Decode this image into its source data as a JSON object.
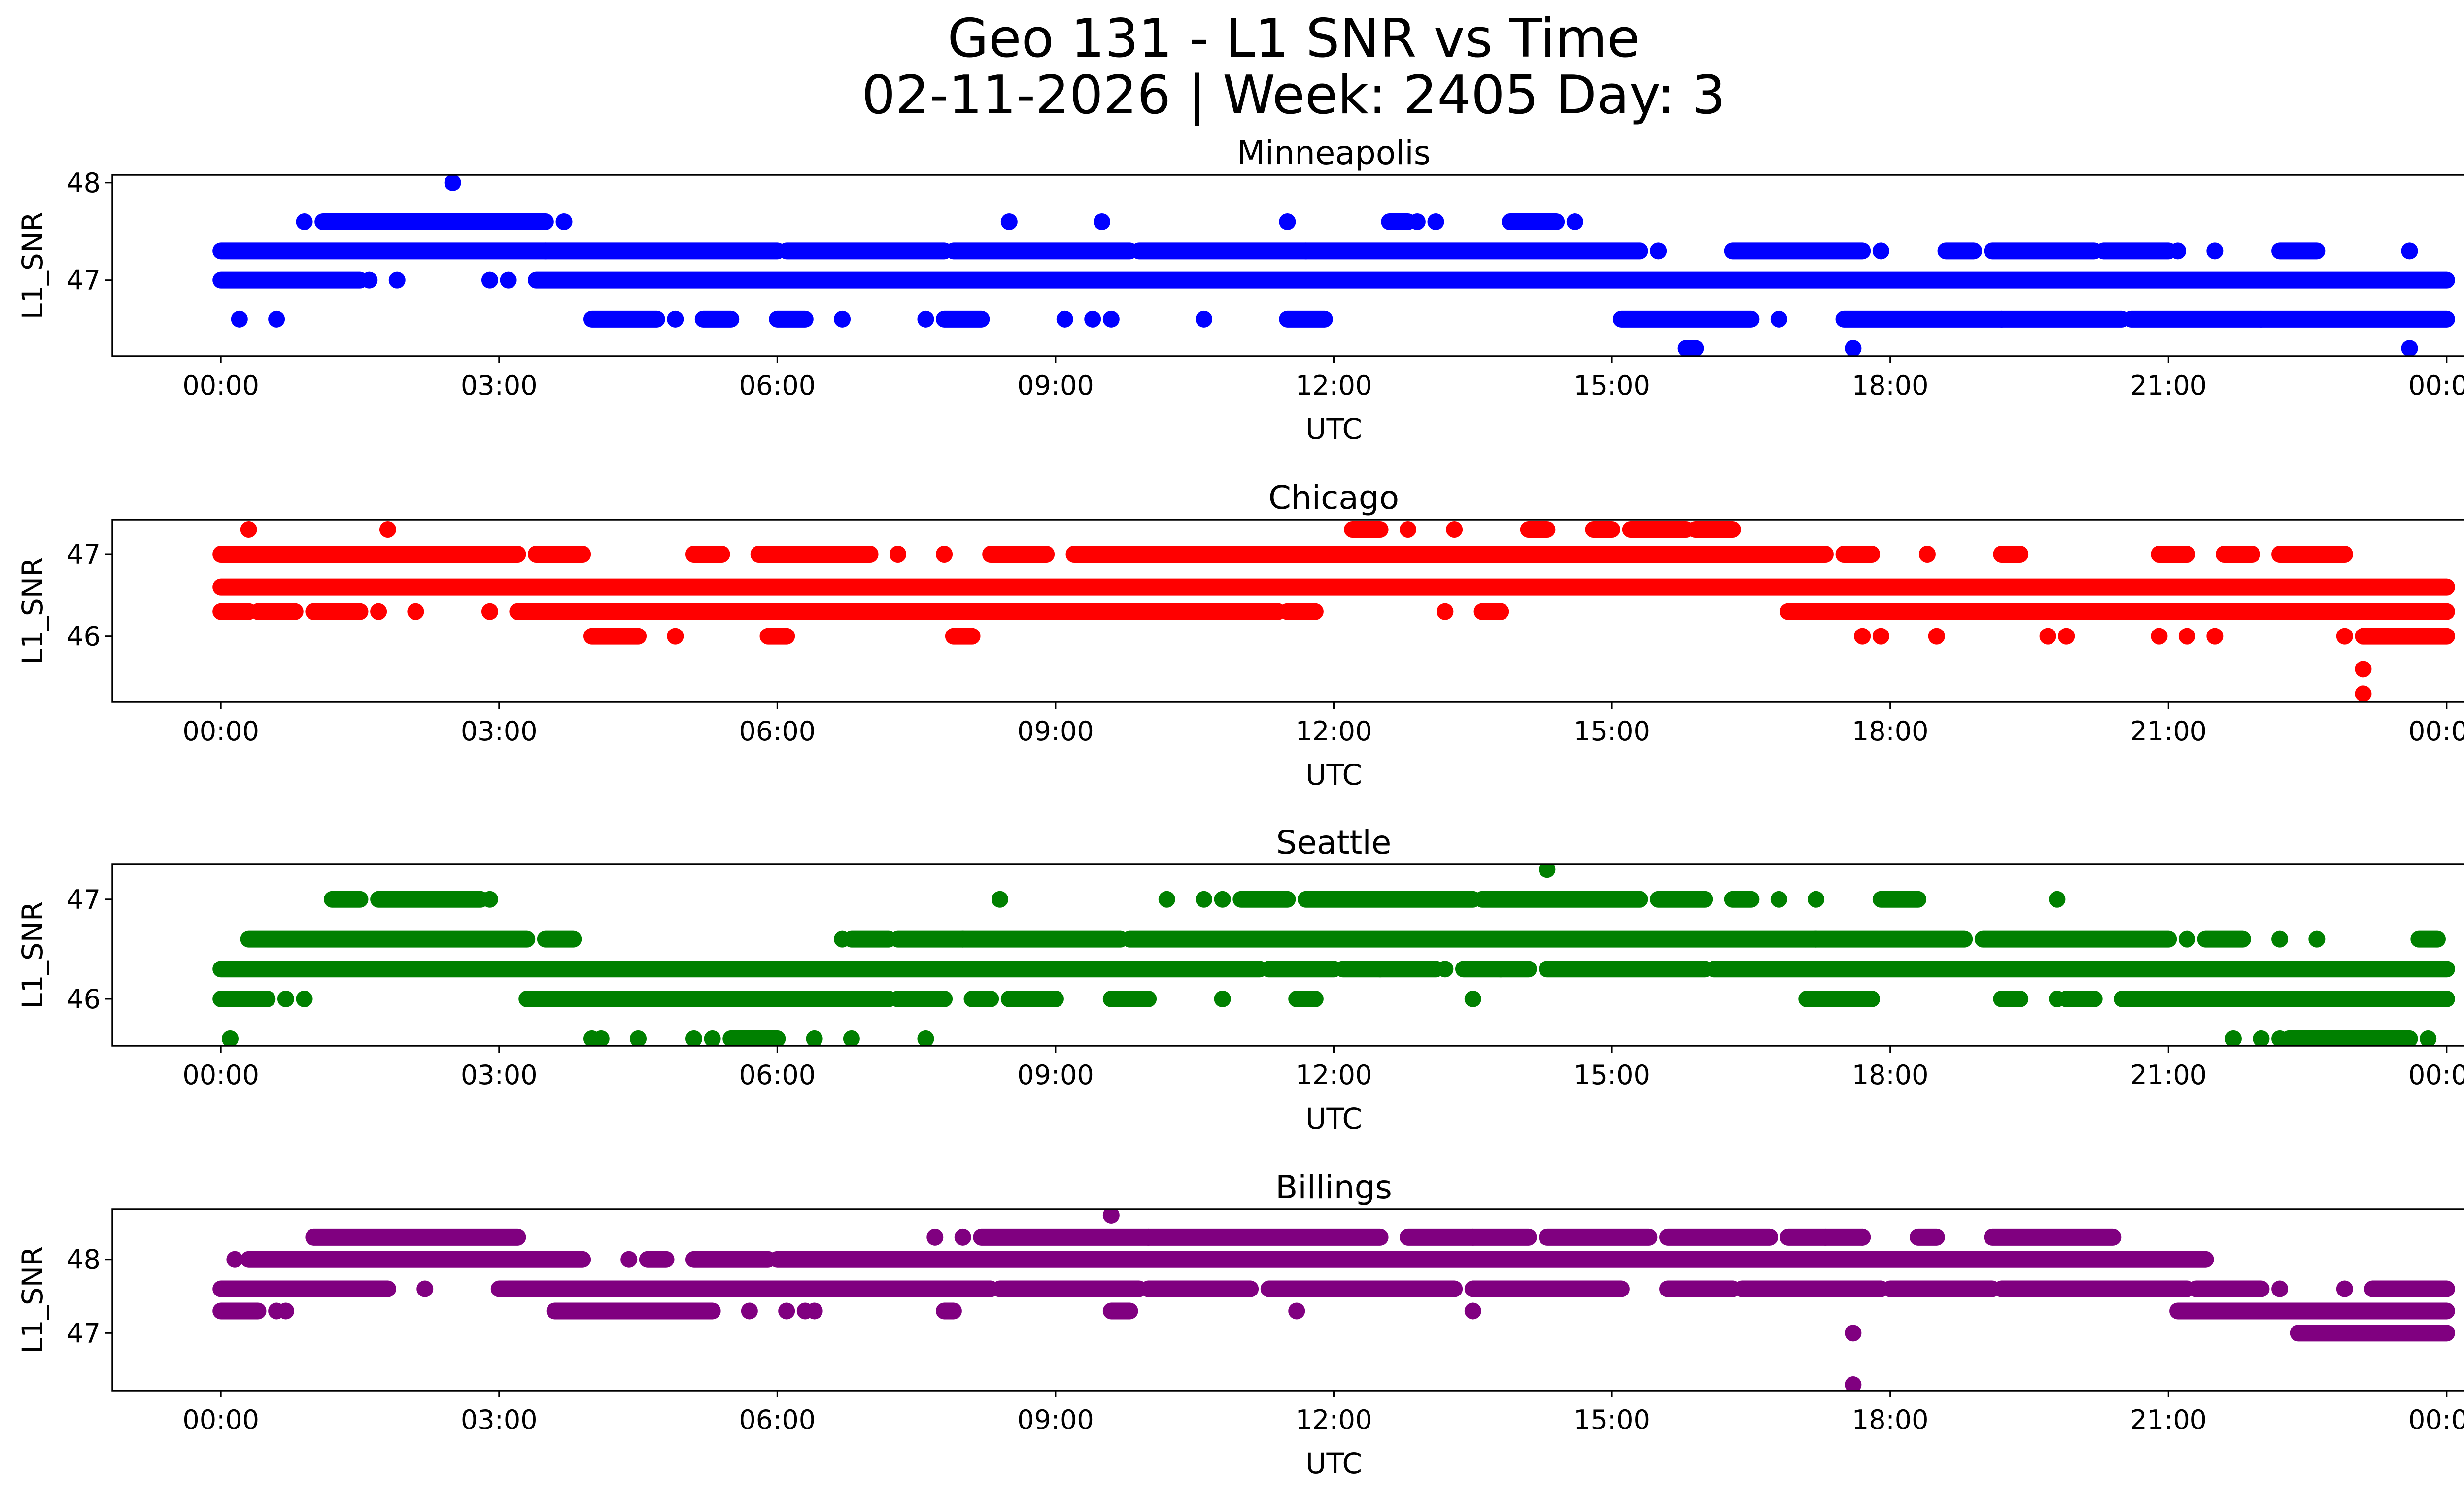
{
  "figure": {
    "title_line1": "Geo 131 - L1 SNR vs Time",
    "title_line2": "02-11-2026 | Week: 2405 Day: 3"
  },
  "chart_data": [
    {
      "type": "scatter",
      "title": "Minneapolis",
      "xlabel": "UTC",
      "ylabel": "L1_SNR",
      "color": "#0000ff",
      "x_range_hours": [
        -1.17,
        25.17
      ],
      "y_range": [
        46.22,
        48.08
      ],
      "x_ticks": [
        {
          "value": 0,
          "label": "00:00"
        },
        {
          "value": 3,
          "label": "03:00"
        },
        {
          "value": 6,
          "label": "06:00"
        },
        {
          "value": 9,
          "label": "09:00"
        },
        {
          "value": 12,
          "label": "12:00"
        },
        {
          "value": 15,
          "label": "15:00"
        },
        {
          "value": 18,
          "label": "18:00"
        },
        {
          "value": 21,
          "label": "21:00"
        },
        {
          "value": 24,
          "label": "00:00"
        }
      ],
      "y_ticks": [
        {
          "value": 47,
          "label": "47"
        },
        {
          "value": 48,
          "label": "48"
        }
      ],
      "series": [
        {
          "y": 47.3,
          "segments": [
            [
              0.0,
              3.5
            ],
            [
              3.5,
              6.0
            ],
            [
              6.1,
              7.8
            ],
            [
              7.9,
              9.8
            ],
            [
              9.9,
              11.7
            ],
            [
              11.7,
              15.3
            ],
            [
              16.3,
              17.7
            ],
            [
              18.6,
              18.9
            ],
            [
              19.1,
              20.2
            ],
            [
              20.3,
              21.0
            ],
            [
              22.2,
              22.6
            ]
          ],
          "points": [
            15.5,
            17.9,
            21.1,
            21.5,
            23.6
          ]
        },
        {
          "y": 47.0,
          "segments": [
            [
              0.0,
              1.5
            ],
            [
              3.4,
              24.0
            ]
          ],
          "points": [
            1.6,
            1.9,
            2.9,
            3.1
          ]
        },
        {
          "y": 47.6,
          "segments": [
            [
              1.1,
              3.5
            ],
            [
              12.6,
              12.8
            ],
            [
              13.9,
              14.4
            ]
          ],
          "points": [
            0.9,
            3.7,
            8.5,
            9.5,
            11.5,
            12.9,
            13.1,
            14.6
          ]
        },
        {
          "y": 46.6,
          "segments": [
            [
              4.0,
              4.7
            ],
            [
              5.2,
              5.5
            ],
            [
              6.0,
              6.3
            ],
            [
              7.8,
              8.2
            ],
            [
              11.5,
              11.9
            ],
            [
              15.1,
              16.5
            ],
            [
              17.5,
              19.2
            ],
            [
              19.2,
              20.5
            ],
            [
              20.6,
              22.0
            ],
            [
              22.0,
              24.0
            ]
          ],
          "points": [
            0.2,
            0.6,
            4.9,
            6.7,
            7.6,
            9.1,
            9.4,
            9.6,
            10.6,
            16.8
          ]
        },
        {
          "y": 46.3,
          "segments": [
            [
              15.8,
              15.9
            ]
          ],
          "points": [
            17.6,
            23.6
          ]
        },
        {
          "y": 48.0,
          "segments": [],
          "points": [
            2.5
          ]
        }
      ]
    },
    {
      "type": "scatter",
      "title": "Chicago",
      "xlabel": "UTC",
      "ylabel": "L1_SNR",
      "color": "#ff0000",
      "x_range_hours": [
        -1.17,
        25.17
      ],
      "y_range": [
        45.2,
        47.42
      ],
      "x_ticks": [
        {
          "value": 0,
          "label": "00:00"
        },
        {
          "value": 3,
          "label": "03:00"
        },
        {
          "value": 6,
          "label": "06:00"
        },
        {
          "value": 9,
          "label": "09:00"
        },
        {
          "value": 12,
          "label": "12:00"
        },
        {
          "value": 15,
          "label": "15:00"
        },
        {
          "value": 18,
          "label": "18:00"
        },
        {
          "value": 21,
          "label": "21:00"
        },
        {
          "value": 24,
          "label": "00:00"
        }
      ],
      "y_ticks": [
        {
          "value": 46,
          "label": "46"
        },
        {
          "value": 47,
          "label": "47"
        }
      ],
      "series": [
        {
          "y": 46.6,
          "segments": [
            [
              0.0,
              24.0
            ]
          ],
          "points": []
        },
        {
          "y": 47.0,
          "segments": [
            [
              0.0,
              3.2
            ],
            [
              3.4,
              3.9
            ],
            [
              5.1,
              5.4
            ],
            [
              5.8,
              6.2
            ],
            [
              6.2,
              7.0
            ],
            [
              8.3,
              8.9
            ],
            [
              9.2,
              12.0
            ],
            [
              12.0,
              17.3
            ],
            [
              17.5,
              17.8
            ],
            [
              19.2,
              19.4
            ],
            [
              20.9,
              21.2
            ],
            [
              21.6,
              21.9
            ],
            [
              22.2,
              22.9
            ]
          ],
          "points": [
            7.3,
            7.8,
            18.4
          ]
        },
        {
          "y": 46.3,
          "segments": [
            [
              0.0,
              0.3
            ],
            [
              0.4,
              0.8
            ],
            [
              1.0,
              1.5
            ],
            [
              3.2,
              11.4
            ],
            [
              11.5,
              11.8
            ],
            [
              13.6,
              13.8
            ],
            [
              16.9,
              24.0
            ]
          ],
          "points": [
            1.7,
            2.1,
            2.9,
            10.7,
            10.9,
            11.3,
            13.2
          ]
        },
        {
          "y": 47.3,
          "segments": [
            [
              12.2,
              12.5
            ],
            [
              14.1,
              14.3
            ],
            [
              14.8,
              15.0
            ],
            [
              15.2,
              15.8
            ],
            [
              15.9,
              16.3
            ]
          ],
          "points": [
            0.3,
            1.8,
            12.8,
            13.3
          ]
        },
        {
          "y": 46.0,
          "segments": [
            [
              4.0,
              4.5
            ],
            [
              5.9,
              6.1
            ],
            [
              7.9,
              8.1
            ],
            [
              23.1,
              24.0
            ]
          ],
          "points": [
            4.9,
            17.7,
            17.9,
            18.5,
            19.7,
            19.9,
            20.9,
            21.2,
            21.5,
            22.9
          ]
        },
        {
          "y": 45.6,
          "segments": [],
          "points": [
            23.1
          ]
        },
        {
          "y": 45.3,
          "segments": [],
          "points": [
            23.1
          ]
        }
      ]
    },
    {
      "type": "scatter",
      "title": "Seattle",
      "xlabel": "UTC",
      "ylabel": "L1_SNR",
      "color": "#008000",
      "x_range_hours": [
        -1.17,
        25.17
      ],
      "y_range": [
        45.53,
        47.35
      ],
      "x_ticks": [
        {
          "value": 0,
          "label": "00:00"
        },
        {
          "value": 3,
          "label": "03:00"
        },
        {
          "value": 6,
          "label": "06:00"
        },
        {
          "value": 9,
          "label": "09:00"
        },
        {
          "value": 12,
          "label": "12:00"
        },
        {
          "value": 15,
          "label": "15:00"
        },
        {
          "value": 18,
          "label": "18:00"
        },
        {
          "value": 21,
          "label": "21:00"
        },
        {
          "value": 24,
          "label": "00:00"
        }
      ],
      "y_ticks": [
        {
          "value": 46,
          "label": "46"
        },
        {
          "value": 47,
          "label": "47"
        }
      ],
      "series": [
        {
          "y": 46.3,
          "segments": [
            [
              0.0,
              11.2
            ],
            [
              11.3,
              12.0
            ],
            [
              12.1,
              13.1
            ],
            [
              13.4,
              13.8
            ],
            [
              13.8,
              14.1
            ],
            [
              14.3,
              16.0
            ],
            [
              16.1,
              24.0
            ]
          ],
          "points": [
            13.2,
            12.5
          ]
        },
        {
          "y": 46.6,
          "segments": [
            [
              0.3,
              3.3
            ],
            [
              3.5,
              3.8
            ],
            [
              6.8,
              7.2
            ],
            [
              7.3,
              8.0
            ],
            [
              8.0,
              9.7
            ],
            [
              9.8,
              17.2
            ],
            [
              17.2,
              18.8
            ],
            [
              19.0,
              21.0
            ],
            [
              21.4,
              21.8
            ],
            [
              23.7,
              23.9
            ]
          ],
          "points": [
            6.7,
            21.2,
            22.2,
            22.6
          ]
        },
        {
          "y": 46.0,
          "segments": [
            [
              0.0,
              0.5
            ],
            [
              3.3,
              7.2
            ],
            [
              7.3,
              7.8
            ],
            [
              8.1,
              8.3
            ],
            [
              8.5,
              9.0
            ],
            [
              9.6,
              10.0
            ],
            [
              11.6,
              11.8
            ],
            [
              17.1,
              17.8
            ],
            [
              19.2,
              19.4
            ],
            [
              19.9,
              20.2
            ],
            [
              20.5,
              24.0
            ]
          ],
          "points": [
            0.7,
            0.9,
            10.8,
            13.5,
            19.8
          ]
        },
        {
          "y": 47.0,
          "segments": [
            [
              1.2,
              1.5
            ],
            [
              1.7,
              2.8
            ],
            [
              11.0,
              11.5
            ],
            [
              11.7,
              13.5
            ],
            [
              13.6,
              15.3
            ],
            [
              15.5,
              16.0
            ],
            [
              16.3,
              16.5
            ],
            [
              17.9,
              18.3
            ]
          ],
          "points": [
            2.9,
            8.4,
            10.2,
            10.6,
            10.8,
            16.8,
            17.2,
            19.8
          ]
        },
        {
          "y": 45.6,
          "segments": [
            [
              5.5,
              6.0
            ],
            [
              22.3,
              23.6
            ]
          ],
          "points": [
            0.1,
            4.0,
            4.1,
            4.5,
            5.1,
            5.3,
            6.4,
            6.8,
            7.6,
            21.7,
            22.0,
            22.2,
            23.8
          ]
        },
        {
          "y": 47.3,
          "segments": [],
          "points": [
            14.3
          ]
        }
      ]
    },
    {
      "type": "scatter",
      "title": "Billings",
      "xlabel": "UTC",
      "ylabel": "L1_SNR",
      "color": "#800080",
      "x_range_hours": [
        -1.17,
        25.17
      ],
      "y_range": [
        46.22,
        48.68
      ],
      "x_ticks": [
        {
          "value": 0,
          "label": "00:00"
        },
        {
          "value": 3,
          "label": "03:00"
        },
        {
          "value": 6,
          "label": "06:00"
        },
        {
          "value": 9,
          "label": "09:00"
        },
        {
          "value": 12,
          "label": "12:00"
        },
        {
          "value": 15,
          "label": "15:00"
        },
        {
          "value": 18,
          "label": "18:00"
        },
        {
          "value": 21,
          "label": "21:00"
        },
        {
          "value": 24,
          "label": "00:00"
        }
      ],
      "y_ticks": [
        {
          "value": 47,
          "label": "47"
        },
        {
          "value": 48,
          "label": "48"
        }
      ],
      "series": [
        {
          "y": 48.0,
          "segments": [
            [
              0.3,
              3.9
            ],
            [
              4.6,
              4.8
            ],
            [
              5.1,
              5.9
            ],
            [
              6.0,
              21.4
            ]
          ],
          "points": [
            0.15,
            4.4
          ]
        },
        {
          "y": 47.6,
          "segments": [
            [
              0.0,
              1.8
            ],
            [
              3.0,
              8.3
            ],
            [
              8.4,
              9.9
            ],
            [
              10.0,
              11.1
            ],
            [
              11.3,
              12.8
            ],
            [
              12.8,
              13.3
            ],
            [
              13.5,
              15.1
            ],
            [
              15.6,
              16.3
            ],
            [
              16.4,
              17.9
            ],
            [
              18.0,
              19.1
            ],
            [
              19.2,
              21.2
            ],
            [
              21.3,
              22.0
            ],
            [
              23.2,
              24.0
            ]
          ],
          "points": [
            2.2,
            8.0,
            9.0,
            10.1,
            16.0,
            16.3,
            22.2,
            22.9
          ]
        },
        {
          "y": 48.3,
          "segments": [
            [
              1.0,
              3.2
            ],
            [
              8.2,
              10.0
            ],
            [
              10.0,
              12.5
            ],
            [
              12.8,
              13.5
            ],
            [
              13.5,
              14.1
            ],
            [
              14.3,
              15.4
            ],
            [
              15.6,
              16.7
            ],
            [
              16.9,
              17.7
            ],
            [
              18.3,
              18.5
            ],
            [
              19.1,
              20.4
            ]
          ],
          "points": [
            7.7,
            8.0,
            17.3,
            17.7
          ]
        },
        {
          "y": 47.3,
          "segments": [
            [
              0.0,
              0.4
            ],
            [
              3.6,
              5.3
            ],
            [
              7.8,
              7.9
            ],
            [
              9.6,
              9.8
            ],
            [
              21.1,
              24.0
            ]
          ],
          "points": [
            0.6,
            0.7,
            5.7,
            6.1,
            6.3,
            6.4,
            11.6,
            13.5
          ]
        },
        {
          "y": 47.0,
          "segments": [
            [
              22.4,
              24.0
            ]
          ],
          "points": [
            17.6
          ]
        },
        {
          "y": 48.6,
          "segments": [],
          "points": [
            9.6
          ]
        },
        {
          "y": 46.3,
          "segments": [],
          "points": [
            17.6
          ]
        }
      ]
    }
  ]
}
